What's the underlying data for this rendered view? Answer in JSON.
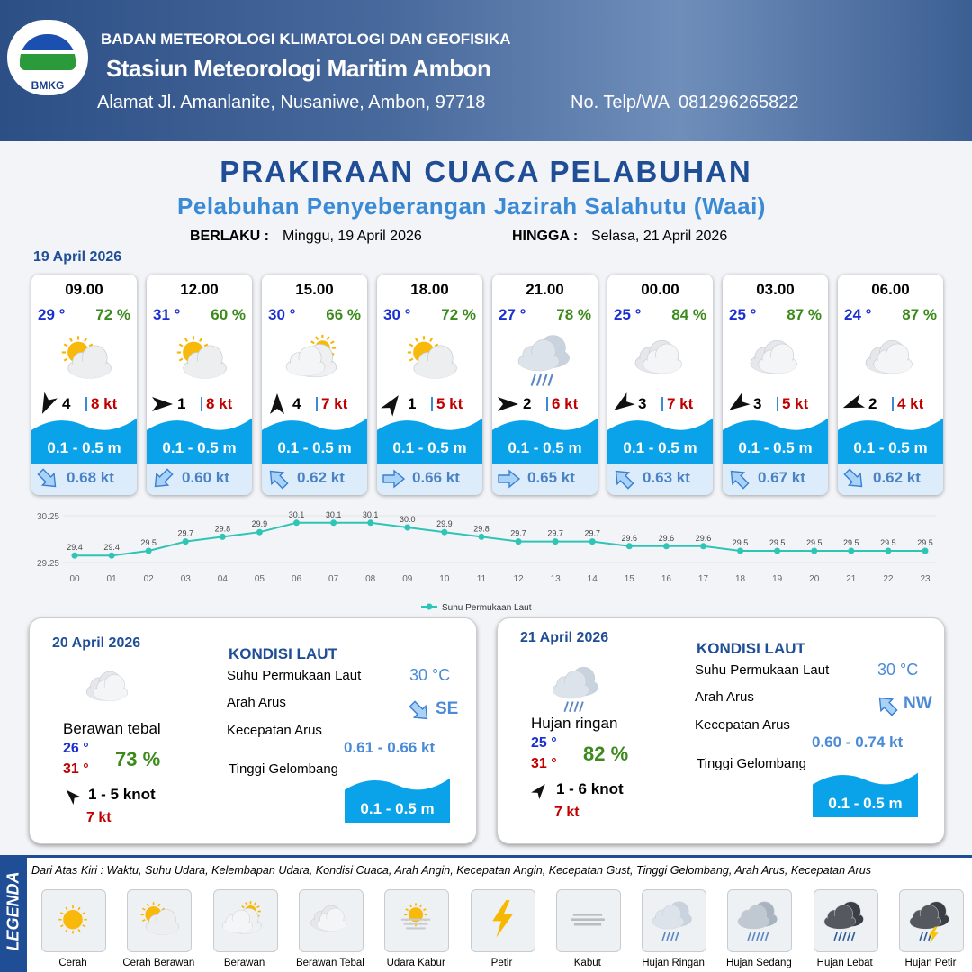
{
  "header": {
    "logo": "BMKG",
    "agency": "BADAN METEOROLOGI KLIMATOLOGI DAN GEOFISIKA",
    "station": "Stasiun Meteorologi Maritim Ambon",
    "address": "Alamat Jl. Amanlanite, Nusaniwe, Ambon, 97718",
    "phone": "No. Telp/WA  081296265822"
  },
  "title": "PRAKIRAAN CUACA PELABUHAN",
  "subtitle": "Pelabuhan Penyeberangan Jazirah Salahutu (Waai)",
  "validity": {
    "from_label": "BERLAKU :",
    "from": "Minggu, 19 April 2026",
    "to_label": "HINGGA :",
    "to": "Selasa, 21 April 2026"
  },
  "day1": {
    "date": "19 April 2026",
    "forecasts": [
      {
        "time": "09.00",
        "temp": "29 °",
        "rh": "72 %",
        "wind": "4",
        "gust": "8 kt",
        "wave": "0.1 - 0.5 m",
        "current": "0.68 kt"
      },
      {
        "time": "12.00",
        "temp": "31 °",
        "rh": "60 %",
        "wind": "1",
        "gust": "8 kt",
        "wave": "0.1 - 0.5 m",
        "current": "0.60 kt"
      },
      {
        "time": "15.00",
        "temp": "30 °",
        "rh": "66 %",
        "wind": "4",
        "gust": "7 kt",
        "wave": "0.1 - 0.5 m",
        "current": "0.62 kt"
      },
      {
        "time": "18.00",
        "temp": "30 °",
        "rh": "72 %",
        "wind": "1",
        "gust": "5 kt",
        "wave": "0.1 - 0.5 m",
        "current": "0.66 kt"
      },
      {
        "time": "21.00",
        "temp": "27 °",
        "rh": "78 %",
        "wind": "2",
        "gust": "6 kt",
        "wave": "0.1 - 0.5 m",
        "current": "0.65 kt"
      },
      {
        "time": "00.00",
        "temp": "25 °",
        "rh": "84 %",
        "wind": "3",
        "gust": "7 kt",
        "wave": "0.1 - 0.5 m",
        "current": "0.63 kt"
      },
      {
        "time": "03.00",
        "temp": "25 °",
        "rh": "87 %",
        "wind": "3",
        "gust": "5 kt",
        "wave": "0.1 - 0.5 m",
        "current": "0.67 kt"
      },
      {
        "time": "06.00",
        "temp": "24 °",
        "rh": "87 %",
        "wind": "2",
        "gust": "4 kt",
        "wave": "0.1 - 0.5 m",
        "current": "0.62 kt"
      }
    ]
  },
  "chart_data": {
    "type": "line",
    "categories": [
      "00",
      "01",
      "02",
      "03",
      "04",
      "05",
      "06",
      "07",
      "08",
      "09",
      "10",
      "11",
      "12",
      "13",
      "14",
      "15",
      "16",
      "17",
      "18",
      "19",
      "20",
      "21",
      "22",
      "23"
    ],
    "series": [
      {
        "name": "Suhu Permukaan Laut",
        "color": "#2ec4b6",
        "values": [
          29.4,
          29.4,
          29.5,
          29.7,
          29.8,
          29.9,
          30.1,
          30.1,
          30.1,
          30.0,
          29.9,
          29.8,
          29.7,
          29.7,
          29.7,
          29.6,
          29.6,
          29.6,
          29.5,
          29.5,
          29.5,
          29.5,
          29.5,
          29.5
        ],
        "value_labels": [
          "29.4",
          "29.4",
          "29.5",
          "29.7",
          "29.8",
          "29.9",
          "30.1",
          "30.1",
          "30.1",
          "30.0",
          "29.9",
          "29.8",
          "29.7",
          "29.7",
          "29.7",
          "29.6",
          "29.6",
          "29.6",
          "29.5",
          "29.5",
          "29.5",
          "29.5",
          "29.5",
          "29.5"
        ]
      }
    ],
    "ylim": [
      29.25,
      30.25
    ],
    "yticks": [
      29.25,
      30.25
    ],
    "grid": true,
    "legend": "bottom"
  },
  "day2": {
    "date": "20 April 2026",
    "condition": "Berawan tebal",
    "tmin": "26 °",
    "tmax": "31 °",
    "rh": "73 %",
    "wind": "1 - 5 knot",
    "gust": "7 kt",
    "sea": {
      "heading": "KONDISI LAUT",
      "sst_label": "Suhu Permukaan Laut",
      "sst": "30 °C",
      "dir_label": "Arah Arus",
      "dir": "SE",
      "speed_label": "Kecepatan Arus",
      "speed": "0.61 - 0.66 kt",
      "wave_label": "Tinggi Gelombang",
      "wave": "0.1 - 0.5 m"
    }
  },
  "day3": {
    "date": "21 April 2026",
    "condition": "Hujan ringan",
    "tmin": "25 °",
    "tmax": "31 °",
    "rh": "82 %",
    "wind": "1 - 6 knot",
    "gust": "7 kt",
    "sea": {
      "heading": "KONDISI LAUT",
      "sst_label": "Suhu Permukaan Laut",
      "sst": "30 °C",
      "dir_label": "Arah Arus",
      "dir": "NW",
      "speed_label": "Kecepatan Arus",
      "speed": "0.60 - 0.74 kt",
      "wave_label": "Tinggi Gelombang",
      "wave": "0.1 - 0.5 m"
    }
  },
  "legend": {
    "title": "LEGENDA",
    "description": "Dari Atas Kiri : Waktu, Suhu Udara, Kelembapan Udara, Kondisi Cuaca, Arah Angin, Kecepatan Angin, Kecepatan Gust, Tinggi Gelombang, Arah Arus, Kecepatan Arus",
    "items": [
      "Cerah",
      "Cerah Berawan",
      "Berawan",
      "Berawan Tebal",
      "Udara Kabur",
      "Petir",
      "Kabut",
      "Hujan Ringan",
      "Hujan Sedang",
      "Hujan Lebat",
      "Hujan Petir"
    ]
  }
}
